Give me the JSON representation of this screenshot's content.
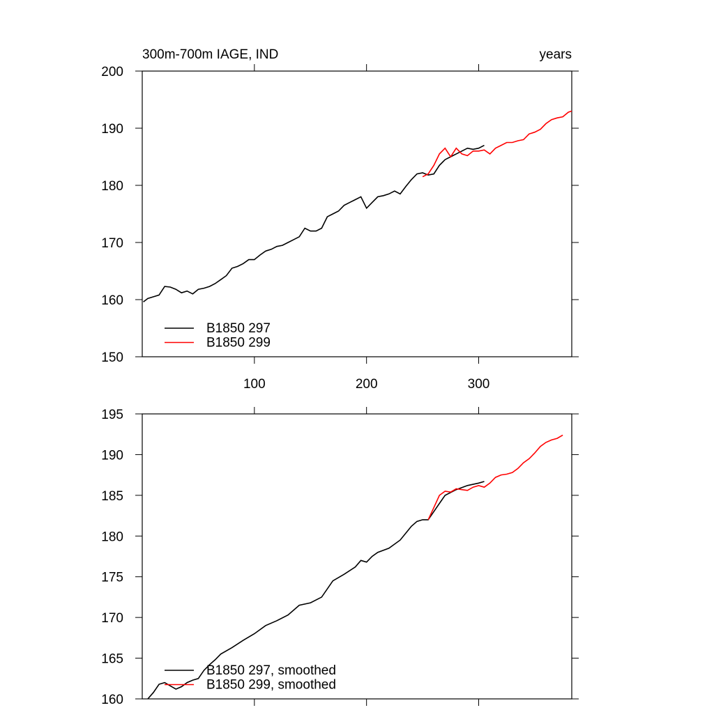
{
  "chart_data": [
    {
      "type": "line",
      "title": "300m-700m IAGE, IND",
      "subtitle": "years",
      "xlim": [
        0,
        383
      ],
      "xticks": [
        100,
        200,
        300
      ],
      "ylim": [
        150,
        200
      ],
      "yticks": [
        150,
        160,
        170,
        180,
        190,
        200
      ],
      "legend": "lower left",
      "series": [
        {
          "name": "B1850 297",
          "color": "#000000",
          "x": [
            1,
            5,
            10,
            15,
            20,
            25,
            30,
            35,
            40,
            45,
            50,
            55,
            60,
            65,
            70,
            75,
            80,
            85,
            90,
            95,
            100,
            105,
            110,
            115,
            120,
            125,
            130,
            135,
            140,
            145,
            150,
            155,
            160,
            165,
            170,
            175,
            180,
            185,
            190,
            195,
            200,
            205,
            210,
            215,
            220,
            225,
            230,
            235,
            240,
            245,
            250,
            255,
            260,
            265,
            270,
            275,
            280,
            285,
            290,
            295,
            300,
            305
          ],
          "values": [
            159.6,
            160.2,
            160.5,
            160.8,
            162.3,
            162.2,
            161.8,
            161.2,
            161.5,
            161.0,
            161.8,
            162.0,
            162.3,
            162.8,
            163.5,
            164.2,
            165.5,
            165.8,
            166.3,
            167.0,
            167.0,
            167.8,
            168.5,
            168.8,
            169.3,
            169.5,
            170.0,
            170.5,
            171.0,
            172.5,
            172.0,
            172.0,
            172.5,
            174.5,
            175.0,
            175.5,
            176.5,
            177.0,
            177.5,
            178.0,
            176.0,
            177.0,
            178.0,
            178.2,
            178.5,
            179.0,
            178.5,
            179.8,
            181.0,
            182.0,
            182.2,
            181.8,
            182.0,
            183.5,
            184.5,
            185.0,
            185.5,
            186.0,
            186.5,
            186.3,
            186.5,
            187.0
          ]
        },
        {
          "name": "B1850 299",
          "color": "#ff0000",
          "x": [
            250,
            255,
            260,
            265,
            270,
            275,
            280,
            285,
            290,
            295,
            300,
            305,
            310,
            315,
            320,
            325,
            330,
            335,
            340,
            345,
            350,
            355,
            360,
            365,
            370,
            375,
            380,
            383
          ],
          "values": [
            181.5,
            182.0,
            183.5,
            185.5,
            186.5,
            185.0,
            186.5,
            185.5,
            185.2,
            186.0,
            186.0,
            186.2,
            185.5,
            186.5,
            187.0,
            187.5,
            187.5,
            187.8,
            188.0,
            189.0,
            189.3,
            189.8,
            190.8,
            191.5,
            191.8,
            192.0,
            192.8,
            193.0
          ]
        }
      ]
    },
    {
      "type": "line",
      "xlim": [
        0,
        383
      ],
      "xticks": [
        100,
        200,
        300
      ],
      "ylim": [
        160,
        195
      ],
      "yticks": [
        160,
        165,
        170,
        175,
        180,
        185,
        190,
        195
      ],
      "legend": "lower left",
      "series": [
        {
          "name": "B1850 297, smoothed",
          "color": "#000000",
          "x": [
            5,
            10,
            15,
            20,
            25,
            30,
            35,
            40,
            45,
            50,
            55,
            60,
            65,
            70,
            80,
            90,
            100,
            110,
            120,
            130,
            140,
            150,
            160,
            170,
            180,
            190,
            195,
            200,
            205,
            210,
            220,
            230,
            240,
            245,
            250,
            255,
            260,
            265,
            270,
            280,
            290,
            300,
            305
          ],
          "values": [
            160.0,
            160.8,
            161.8,
            162.0,
            161.6,
            161.2,
            161.5,
            162.0,
            162.3,
            162.5,
            163.5,
            164.2,
            164.8,
            165.5,
            166.3,
            167.2,
            168.0,
            169.0,
            169.6,
            170.3,
            171.5,
            171.8,
            172.5,
            174.5,
            175.3,
            176.2,
            177.0,
            176.8,
            177.5,
            178.0,
            178.5,
            179.5,
            181.2,
            181.8,
            182.0,
            182.0,
            183.0,
            184.0,
            185.0,
            185.7,
            186.2,
            186.5,
            186.7
          ]
        },
        {
          "name": "B1850 299, smoothed",
          "color": "#ff0000",
          "x": [
            255,
            260,
            265,
            270,
            275,
            280,
            285,
            290,
            295,
            300,
            305,
            310,
            315,
            320,
            325,
            330,
            335,
            340,
            345,
            350,
            355,
            360,
            365,
            370,
            375
          ],
          "values": [
            182.0,
            183.5,
            185.0,
            185.5,
            185.4,
            185.8,
            185.7,
            185.6,
            186.0,
            186.2,
            186.0,
            186.5,
            187.2,
            187.5,
            187.6,
            187.8,
            188.3,
            189.0,
            189.5,
            190.2,
            191.0,
            191.5,
            191.8,
            192.0,
            192.4
          ]
        }
      ]
    }
  ]
}
